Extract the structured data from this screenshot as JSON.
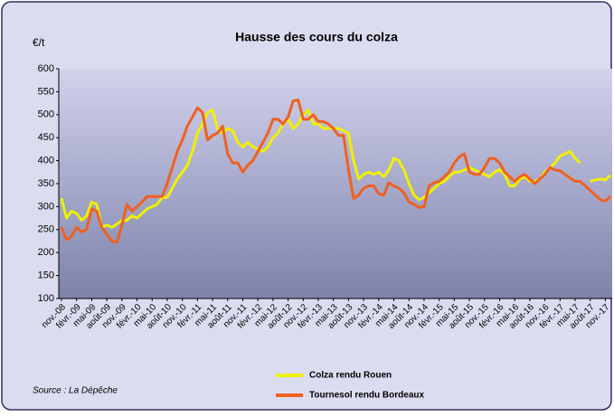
{
  "chart_data": {
    "type": "line",
    "title": "Hausse des cours du colza",
    "y_label": "€/t",
    "source": "Source : La Dépêche",
    "categories": [
      "nov.-08",
      null,
      null,
      "févr.-09",
      null,
      null,
      "mai-09",
      null,
      null,
      "août-09",
      null,
      null,
      "nov.-09",
      null,
      null,
      "févr.-10",
      null,
      null,
      "mai-10",
      null,
      null,
      "août-10",
      null,
      null,
      "nov.-10",
      null,
      null,
      "févr.-11",
      null,
      null,
      "mai-11",
      null,
      null,
      "août-11",
      null,
      null,
      "nov.-11",
      null,
      null,
      "févr.-12",
      null,
      null,
      "mai-12",
      null,
      null,
      "août-12",
      null,
      null,
      "nov.-12",
      null,
      null,
      "févr.-13",
      null,
      null,
      "mai-13",
      null,
      null,
      "août-13",
      null,
      null,
      "nov.-13",
      null,
      null,
      "févr.-14",
      null,
      null,
      "mai-14",
      null,
      null,
      "août-14",
      null,
      null,
      "nov.-14",
      null,
      null,
      "févr.-15",
      null,
      null,
      "mai-15",
      null,
      null,
      "août-15",
      null,
      null,
      "nov.-15",
      null,
      null,
      "févr.-16",
      null,
      null,
      "mai-16",
      null,
      null,
      "août-16",
      null,
      null,
      "nov.-16",
      null,
      null,
      "févr.-17",
      null,
      null,
      "mai-17",
      null,
      null,
      "août-17",
      null,
      null,
      "nov.-17",
      null
    ],
    "series": [
      {
        "name": "Colza rendu Rouen",
        "color": "#f0f000",
        "values": [
          318,
          275,
          290,
          285,
          270,
          280,
          310,
          305,
          255,
          260,
          255,
          262,
          270,
          270,
          280,
          275,
          285,
          295,
          300,
          305,
          320,
          320,
          340,
          360,
          375,
          390,
          420,
          460,
          480,
          505,
          510,
          470,
          460,
          470,
          465,
          440,
          430,
          440,
          430,
          425,
          420,
          430,
          450,
          460,
          480,
          490,
          470,
          480,
          500,
          510,
          480,
          480,
          470,
          470,
          470,
          470,
          465,
          460,
          400,
          360,
          370,
          375,
          370,
          375,
          365,
          380,
          405,
          400,
          380,
          350,
          325,
          315,
          320,
          330,
          340,
          350,
          355,
          365,
          375,
          375,
          380,
          385,
          380,
          375,
          370,
          365,
          375,
          380,
          370,
          345,
          345,
          360,
          365,
          355,
          355,
          360,
          375,
          385,
          395,
          410,
          415,
          420,
          405,
          395,
          null,
          355,
          358,
          360,
          358,
          368
        ]
      },
      {
        "name": "Tournesol rendu Bordeaux",
        "color": "#f06020",
        "values": [
          255,
          228,
          235,
          255,
          245,
          250,
          295,
          290,
          255,
          240,
          225,
          222,
          260,
          305,
          290,
          300,
          310,
          322,
          322,
          322,
          322,
          350,
          385,
          420,
          445,
          475,
          495,
          515,
          505,
          445,
          455,
          460,
          475,
          415,
          395,
          395,
          375,
          390,
          400,
          420,
          440,
          460,
          490,
          490,
          480,
          495,
          530,
          532,
          490,
          490,
          500,
          485,
          485,
          480,
          470,
          455,
          455,
          380,
          318,
          325,
          340,
          345,
          345,
          328,
          325,
          352,
          345,
          340,
          330,
          310,
          305,
          298,
          300,
          345,
          352,
          355,
          365,
          375,
          395,
          408,
          415,
          375,
          370,
          370,
          385,
          405,
          405,
          395,
          375,
          365,
          355,
          365,
          370,
          360,
          350,
          360,
          370,
          385,
          380,
          378,
          370,
          362,
          355,
          355,
          345,
          335,
          325,
          315,
          312,
          322
        ]
      }
    ],
    "ylim": [
      100,
      600
    ],
    "yticks": [
      100,
      150,
      200,
      250,
      300,
      350,
      400,
      450,
      500,
      550,
      600
    ],
    "grid": false
  }
}
